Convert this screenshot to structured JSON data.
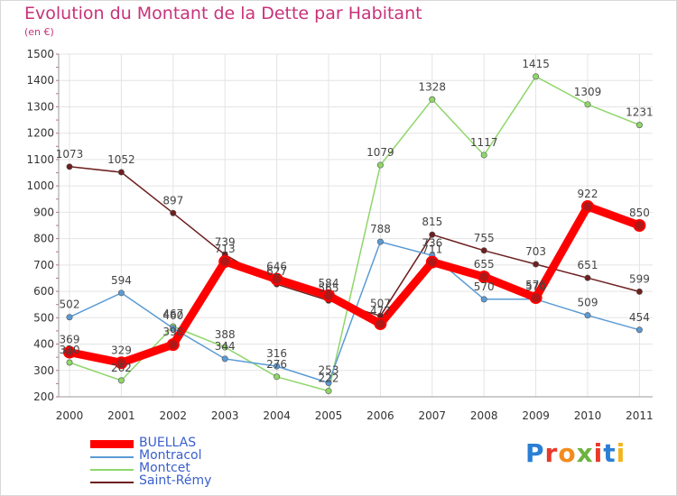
{
  "title": "Evolution du Montant de la Dette par Habitant",
  "subtitle": "(en €)",
  "logo": "Proxiti",
  "logo_colors": [
    "#2a7fd4",
    "#e8392b",
    "#f28c1e",
    "#6cb33f",
    "#e8392b",
    "#2a7fd4",
    "#f2b51e"
  ],
  "chart_data": {
    "type": "line",
    "x": [
      "2000",
      "2001",
      "2002",
      "2003",
      "2004",
      "2005",
      "2006",
      "2007",
      "2008",
      "2009",
      "2010",
      "2011"
    ],
    "ylim": [
      200,
      1500
    ],
    "yticks": [
      200,
      300,
      400,
      500,
      600,
      700,
      800,
      900,
      1000,
      1100,
      1200,
      1300,
      1400,
      1500
    ],
    "grid": true,
    "legend_position": "bottom-left",
    "series": [
      {
        "name": "Saint-Rémy",
        "color": "#6e1f1f",
        "values": [
          1073,
          1052,
          897,
          739,
          627,
          565,
          507,
          815,
          755,
          703,
          651,
          599
        ]
      },
      {
        "name": "Montcet",
        "color": "#8fd66a",
        "values": [
          330,
          262,
          467,
          388,
          276,
          222,
          1079,
          1328,
          1117,
          1415,
          1309,
          1231
        ]
      },
      {
        "name": "Montracol",
        "color": "#5b9bd5",
        "values": [
          502,
          594,
          460,
          344,
          316,
          253,
          788,
          736,
          570,
          570,
          509,
          454
        ]
      },
      {
        "name": "BUELLAS",
        "color": "#ff0000",
        "values": [
          369,
          329,
          398,
          713,
          646,
          584,
          477,
          711,
          655,
          576,
          922,
          850
        ]
      }
    ],
    "legend_order": [
      "BUELLAS",
      "Montracol",
      "Montcet",
      "Saint-Rémy"
    ]
  }
}
